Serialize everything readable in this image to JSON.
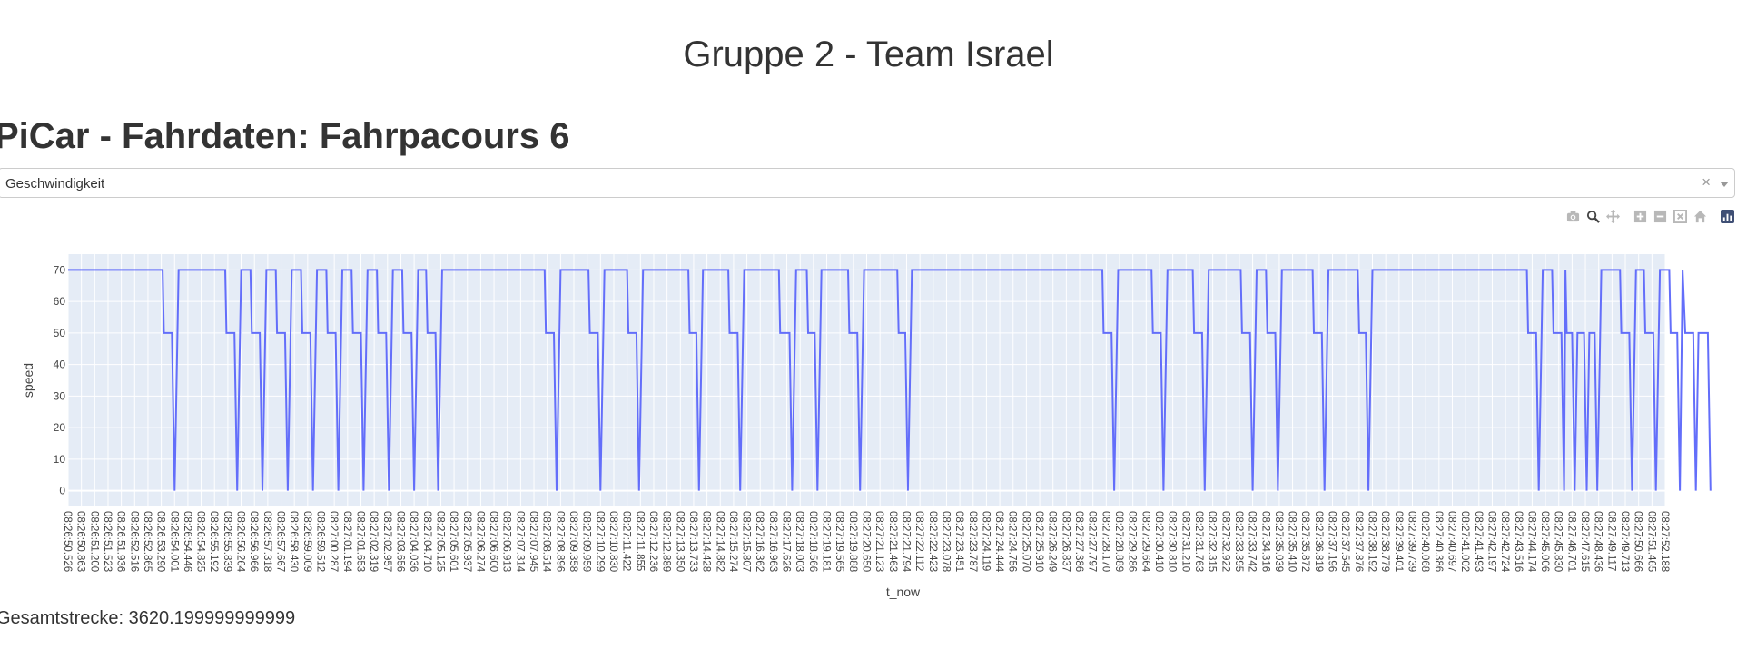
{
  "header": {
    "title": "Gruppe 2 - Team Israel"
  },
  "subtitle": "PiCar - Fahrdaten: Fahrpacours 6",
  "dropdown": {
    "selected": "Geschwindigkeit",
    "clear_icon": "×"
  },
  "modebar": {
    "icons": [
      "camera-icon",
      "zoom-icon",
      "pan-icon",
      "zoom-in-icon",
      "zoom-out-icon",
      "autoscale-icon",
      "reset-axes-icon",
      "plotly-logo-icon"
    ]
  },
  "footer": {
    "text": "Gesamtstrecke: 3620.199999999999"
  },
  "chart_data": {
    "type": "line",
    "xlabel": "t_now",
    "ylabel": "speed",
    "ylim": [
      -5,
      75
    ],
    "yticks": [
      0,
      10,
      20,
      30,
      40,
      50,
      60,
      70
    ],
    "grid": true,
    "line_color": "#636efa",
    "plot_bg": "#e5ecf6",
    "x_ticklabels": [
      "08:26:50.526",
      "08:26:50.863",
      "08:26:51.200",
      "08:26:51.523",
      "08:26:51.936",
      "08:26:52.516",
      "08:26:52.865",
      "08:26:53.290",
      "08:26:54.001",
      "08:26:54.446",
      "08:26:54.825",
      "08:26:55.192",
      "08:26:55.839",
      "08:26:56.264",
      "08:26:56.966",
      "08:26:57.318",
      "08:26:57.667",
      "08:26:58.430",
      "08:26:59.009",
      "08:26:59.512",
      "08:27:00.287",
      "08:27:01.194",
      "08:27:01.653",
      "08:27:02.319",
      "08:27:02.957",
      "08:27:03.656",
      "08:27:04.036",
      "08:27:04.710",
      "08:27:05.125",
      "08:27:05.601",
      "08:27:05.937",
      "08:27:06.274",
      "08:27:06.600",
      "08:27:06.913",
      "08:27:07.314",
      "08:27:07.945",
      "08:27:08.514",
      "08:27:08.896",
      "08:27:09.358",
      "08:27:09.959",
      "08:27:10.299",
      "08:27:10.830",
      "08:27:11.422",
      "08:27:11.855",
      "08:27:12.236",
      "08:27:12.889",
      "08:27:13.350",
      "08:27:13.733",
      "08:27:14.428",
      "08:27:14.882",
      "08:27:15.274",
      "08:27:15.807",
      "08:27:16.362",
      "08:27:16.963",
      "08:27:17.626",
      "08:27:18.003",
      "08:27:18.566",
      "08:27:19.181",
      "08:27:19.565",
      "08:27:19.888",
      "08:27:20.650",
      "08:27:21.123",
      "08:27:21.463",
      "08:27:21.794",
      "08:27:22.112",
      "08:27:22.423",
      "08:27:23.078",
      "08:27:23.451",
      "08:27:23.787",
      "08:27:24.119",
      "08:27:24.444",
      "08:27:24.756",
      "08:27:25.070",
      "08:27:25.910",
      "08:27:26.249",
      "08:27:26.837",
      "08:27:27.386",
      "08:27:27.797",
      "08:27:28.170",
      "08:27:28.889",
      "08:27:29.286",
      "08:27:29.664",
      "08:27:30.410",
      "08:27:30.810",
      "08:27:31.210",
      "08:27:31.763",
      "08:27:32.315",
      "08:27:32.922",
      "08:27:33.395",
      "08:27:33.742",
      "08:27:34.316",
      "08:27:35.039",
      "08:27:35.410",
      "08:27:35.872",
      "08:27:36.819",
      "08:27:37.196",
      "08:27:37.545",
      "08:27:37.876",
      "08:27:38.192",
      "08:27:38.779",
      "08:27:39.401",
      "08:27:39.739",
      "08:27:40.068",
      "08:27:40.386",
      "08:27:40.697",
      "08:27:41.002",
      "08:27:41.493",
      "08:27:42.197",
      "08:27:42.724",
      "08:27:43.516",
      "08:27:44.174",
      "08:27:45.006",
      "08:27:45.830",
      "08:27:46.701",
      "08:27:47.615",
      "08:27:48.436",
      "08:27:49.117",
      "08:27:49.713",
      "08:27:50.666",
      "08:27:51.465",
      "08:27:52.188"
    ],
    "steps": [
      [
        0,
        70
      ],
      [
        7.1,
        70
      ],
      [
        7.2,
        50
      ],
      [
        7.8,
        50
      ],
      [
        8.0,
        0
      ],
      [
        8.3,
        70
      ],
      [
        11.8,
        70
      ],
      [
        11.9,
        50
      ],
      [
        12.5,
        50
      ],
      [
        12.7,
        0
      ],
      [
        13.0,
        70
      ],
      [
        13.7,
        70
      ],
      [
        13.8,
        50
      ],
      [
        14.4,
        50
      ],
      [
        14.6,
        0
      ],
      [
        14.9,
        70
      ],
      [
        15.6,
        70
      ],
      [
        15.7,
        50
      ],
      [
        16.3,
        50
      ],
      [
        16.5,
        0
      ],
      [
        16.8,
        70
      ],
      [
        17.5,
        70
      ],
      [
        17.6,
        50
      ],
      [
        18.2,
        50
      ],
      [
        18.4,
        0
      ],
      [
        18.7,
        70
      ],
      [
        19.4,
        70
      ],
      [
        19.5,
        50
      ],
      [
        20.1,
        50
      ],
      [
        20.3,
        0
      ],
      [
        20.6,
        70
      ],
      [
        21.3,
        70
      ],
      [
        21.4,
        50
      ],
      [
        22.0,
        50
      ],
      [
        22.2,
        0
      ],
      [
        22.5,
        70
      ],
      [
        23.2,
        70
      ],
      [
        23.3,
        50
      ],
      [
        23.9,
        50
      ],
      [
        24.1,
        0
      ],
      [
        24.4,
        70
      ],
      [
        25.1,
        70
      ],
      [
        25.2,
        50
      ],
      [
        25.8,
        50
      ],
      [
        26.0,
        0
      ],
      [
        26.3,
        70
      ],
      [
        26.9,
        70
      ],
      [
        27.0,
        50
      ],
      [
        27.6,
        50
      ],
      [
        27.8,
        0
      ],
      [
        28.1,
        70
      ],
      [
        35.8,
        70
      ],
      [
        35.9,
        50
      ],
      [
        36.5,
        50
      ],
      [
        36.7,
        0
      ],
      [
        37.0,
        70
      ],
      [
        39.1,
        70
      ],
      [
        39.2,
        50
      ],
      [
        39.8,
        50
      ],
      [
        40.0,
        0
      ],
      [
        40.3,
        70
      ],
      [
        42.0,
        70
      ],
      [
        42.1,
        50
      ],
      [
        42.7,
        50
      ],
      [
        42.9,
        0
      ],
      [
        43.2,
        70
      ],
      [
        46.6,
        70
      ],
      [
        46.7,
        50
      ],
      [
        47.2,
        50
      ],
      [
        47.4,
        0
      ],
      [
        47.7,
        70
      ],
      [
        49.6,
        70
      ],
      [
        49.7,
        50
      ],
      [
        50.3,
        50
      ],
      [
        50.5,
        0
      ],
      [
        50.8,
        70
      ],
      [
        53.4,
        70
      ],
      [
        53.5,
        50
      ],
      [
        54.2,
        50
      ],
      [
        54.4,
        0
      ],
      [
        54.7,
        70
      ],
      [
        55.5,
        70
      ],
      [
        55.6,
        50
      ],
      [
        56.1,
        50
      ],
      [
        56.3,
        0
      ],
      [
        56.6,
        70
      ],
      [
        58.6,
        70
      ],
      [
        58.7,
        50
      ],
      [
        59.3,
        50
      ],
      [
        59.5,
        0
      ],
      [
        59.8,
        70
      ],
      [
        62.3,
        70
      ],
      [
        62.4,
        50
      ],
      [
        62.9,
        50
      ],
      [
        63.1,
        0
      ],
      [
        63.4,
        70
      ],
      [
        77.7,
        70
      ],
      [
        77.8,
        50
      ],
      [
        78.4,
        50
      ],
      [
        78.6,
        0
      ],
      [
        78.9,
        70
      ],
      [
        81.4,
        70
      ],
      [
        81.5,
        50
      ],
      [
        82.1,
        50
      ],
      [
        82.3,
        0
      ],
      [
        82.6,
        70
      ],
      [
        84.5,
        70
      ],
      [
        84.6,
        50
      ],
      [
        85.2,
        50
      ],
      [
        85.4,
        0
      ],
      [
        85.7,
        70
      ],
      [
        88.1,
        70
      ],
      [
        88.2,
        50
      ],
      [
        88.8,
        50
      ],
      [
        89.0,
        0
      ],
      [
        89.3,
        70
      ],
      [
        90.0,
        70
      ],
      [
        90.1,
        50
      ],
      [
        90.7,
        50
      ],
      [
        90.9,
        0
      ],
      [
        91.2,
        70
      ],
      [
        93.5,
        70
      ],
      [
        93.6,
        50
      ],
      [
        94.2,
        50
      ],
      [
        94.4,
        0
      ],
      [
        94.7,
        70
      ],
      [
        96.9,
        70
      ],
      [
        97.0,
        50
      ],
      [
        97.5,
        50
      ],
      [
        97.7,
        0
      ],
      [
        98.0,
        70
      ],
      [
        109.6,
        70
      ],
      [
        109.7,
        50
      ],
      [
        110.3,
        50
      ],
      [
        110.5,
        0
      ],
      [
        110.8,
        70
      ],
      [
        111.5,
        70
      ],
      [
        111.6,
        50
      ],
      [
        112.2,
        50
      ],
      [
        112.4,
        0
      ],
      [
        112.5,
        70
      ],
      [
        112.6,
        50
      ],
      [
        113.0,
        50
      ],
      [
        113.2,
        0
      ],
      [
        113.4,
        50
      ],
      [
        113.9,
        50
      ],
      [
        114.1,
        0
      ],
      [
        114.3,
        50
      ],
      [
        114.7,
        50
      ],
      [
        114.9,
        0
      ],
      [
        115.2,
        70
      ],
      [
        116.6,
        70
      ],
      [
        116.7,
        50
      ],
      [
        117.3,
        50
      ],
      [
        117.5,
        0
      ],
      [
        117.8,
        70
      ],
      [
        118.4,
        70
      ],
      [
        118.5,
        50
      ],
      [
        119.1,
        50
      ],
      [
        119.3,
        0
      ],
      [
        119.6,
        70
      ],
      [
        120.3,
        70
      ],
      [
        120.4,
        50
      ],
      [
        120.9,
        50
      ],
      [
        121.1,
        0
      ],
      [
        121.3,
        70
      ],
      [
        121.5,
        50
      ],
      [
        122.1,
        50
      ],
      [
        122.3,
        0
      ],
      [
        122.5,
        50
      ],
      [
        123.2,
        50
      ],
      [
        123.4,
        0
      ]
    ]
  }
}
